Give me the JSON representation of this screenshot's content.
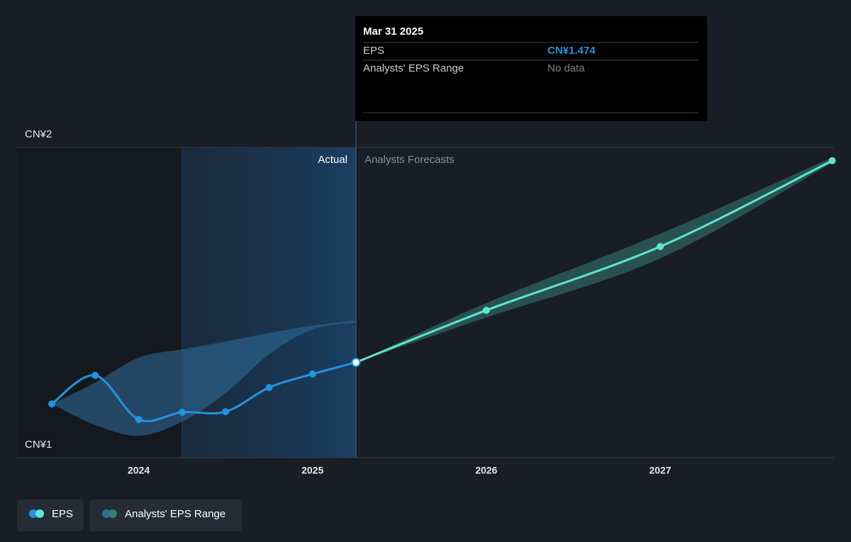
{
  "chart_data": {
    "type": "line",
    "actual_label": "Actual",
    "forecast_label": "Analysts Forecasts",
    "xlim": [
      2023.3,
      2028.0
    ],
    "xticks": [
      2024,
      2025,
      2026,
      2027
    ],
    "ylim": [
      1.13,
      2.25
    ],
    "yticks": [
      {
        "value": 1.13,
        "label": "CN¥1"
      },
      {
        "value": 2.25,
        "label": "CN¥2"
      }
    ],
    "grid": true,
    "series": [
      {
        "name": "EPS",
        "color": "#2394df",
        "forecast_color": "#5ee6d0",
        "x": [
          2023.5,
          2023.75,
          2024.0,
          2024.25,
          2024.5,
          2024.75,
          2025.0,
          2025.25
        ],
        "values": [
          1.324,
          1.427,
          1.268,
          1.294,
          1.296,
          1.383,
          1.432,
          1.474
        ],
        "forecast_x": [
          2026.0,
          2027.0,
          2027.99
        ],
        "forecast_values": [
          1.662,
          1.892,
          2.202
        ]
      },
      {
        "name": "Analysts' EPS Range",
        "color": "#2f6f9c",
        "forecast_color": "#3a7c76",
        "x": [
          2023.5,
          2023.75,
          2024.0,
          2024.25,
          2024.5,
          2024.75,
          2025.0,
          2025.25
        ],
        "high": [
          1.324,
          1.401,
          1.491,
          1.521,
          1.549,
          1.58,
          1.606,
          1.626
        ],
        "low": [
          1.324,
          1.248,
          1.209,
          1.26,
          1.363,
          1.503,
          1.593,
          1.618
        ],
        "forecast_x": [
          2026.0,
          2027.0,
          2027.99
        ],
        "forecast_high": [
          1.688,
          1.938,
          2.214
        ],
        "forecast_low": [
          1.636,
          1.849,
          2.194
        ]
      }
    ],
    "tooltip": {
      "date": "Mar 31 2025",
      "eps_label": "EPS",
      "eps_value": "CN¥1.474",
      "range_label": "Analysts' EPS Range",
      "range_value": "No data"
    }
  }
}
